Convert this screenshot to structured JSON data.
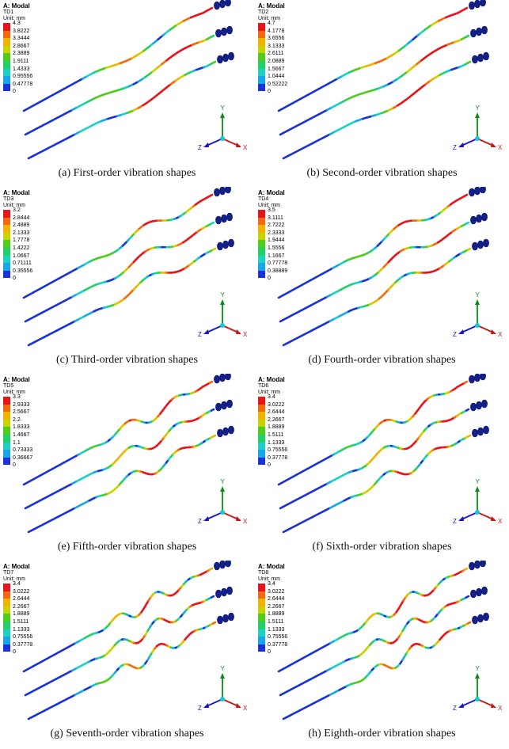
{
  "figure": {
    "panels": [
      {
        "id": "a",
        "header": "A: Modal",
        "mode": "TD1",
        "unit": "Unit: mm",
        "legend": [
          "4.3",
          "3.8222",
          "3.3444",
          "2.8667",
          "2.3889",
          "1.9111",
          "1.4333",
          "0.95556",
          "0.47778",
          "0"
        ],
        "caption": "(a) First-order vibration shapes",
        "waves": 1
      },
      {
        "id": "b",
        "header": "A: Modal",
        "mode": "TD2",
        "unit": "Unit: mm",
        "legend": [
          "4.7",
          "4.1778",
          "3.6556",
          "3.1333",
          "2.6111",
          "2.0889",
          "1.5667",
          "1.0444",
          "0.52222",
          "0"
        ],
        "caption": "(b) Second-order vibration shapes",
        "waves": 1
      },
      {
        "id": "c",
        "header": "A: Modal",
        "mode": "TD3",
        "unit": "Unit: mm",
        "legend": [
          "3.2",
          "2.8444",
          "2.4889",
          "2.1333",
          "1.7778",
          "1.4222",
          "1.0667",
          "0.71111",
          "0.35556",
          "0"
        ],
        "caption": "(c) Third-order vibration shapes",
        "waves": 2
      },
      {
        "id": "d",
        "header": "A: Modal",
        "mode": "TD4",
        "unit": "Unit: mm",
        "legend": [
          "3.5",
          "3.1111",
          "2.7222",
          "2.3333",
          "1.9444",
          "1.5556",
          "1.1667",
          "0.77778",
          "0.38889",
          "0"
        ],
        "caption": "(d) Fourth-order vibration shapes",
        "waves": 2
      },
      {
        "id": "e",
        "header": "A: Modal",
        "mode": "TD5",
        "unit": "Unit: mm",
        "legend": [
          "3.3",
          "2.9333",
          "2.5667",
          "2.2",
          "1.8333",
          "1.4667",
          "1.1",
          "0.73333",
          "0.36667",
          "0"
        ],
        "caption": "(e) Fifth-order vibration shapes",
        "waves": 3
      },
      {
        "id": "f",
        "header": "A: Modal",
        "mode": "TD6",
        "unit": "Unit: mm",
        "legend": [
          "3.4",
          "3.0222",
          "2.6444",
          "2.2667",
          "1.8889",
          "1.5111",
          "1.1333",
          "0.75556",
          "0.37778",
          "0"
        ],
        "caption": "(f) Sixth-order vibration shapes",
        "waves": 3
      },
      {
        "id": "g",
        "header": "A: Modal",
        "mode": "TD7",
        "unit": "Unit: mm",
        "legend": [
          "3.4",
          "3.0222",
          "2.6444",
          "2.2667",
          "1.8889",
          "1.5111",
          "1.1333",
          "0.75556",
          "0.37778",
          "0"
        ],
        "caption": "(g) Seventh-order vibration shapes",
        "waves": 4
      },
      {
        "id": "h",
        "header": "A: Modal",
        "mode": "TD8",
        "unit": "Unit: mm",
        "legend": [
          "3.4",
          "3.0222",
          "2.6444",
          "2.2667",
          "1.8889",
          "1.5111",
          "1.1333",
          "0.75556",
          "0.37778",
          "0"
        ],
        "caption": "(h) Eighth-order vibration shapes",
        "waves": 4
      }
    ],
    "legend_colors": [
      "#e8141b",
      "#f26a10",
      "#f0b400",
      "#c8d400",
      "#4fcc1c",
      "#22cf6a",
      "#1ed2c3",
      "#18a6e8",
      "#1b32d8"
    ],
    "axis_labels": {
      "y": "Y",
      "z": "Z",
      "x": "X"
    },
    "axis_colors": {
      "y": "#0c8a1a",
      "z": "#1616c8",
      "x": "#c81616",
      "origin": "#17c8d0"
    },
    "tube_color": "#1b28b8",
    "electrode_color": "#14208a"
  }
}
